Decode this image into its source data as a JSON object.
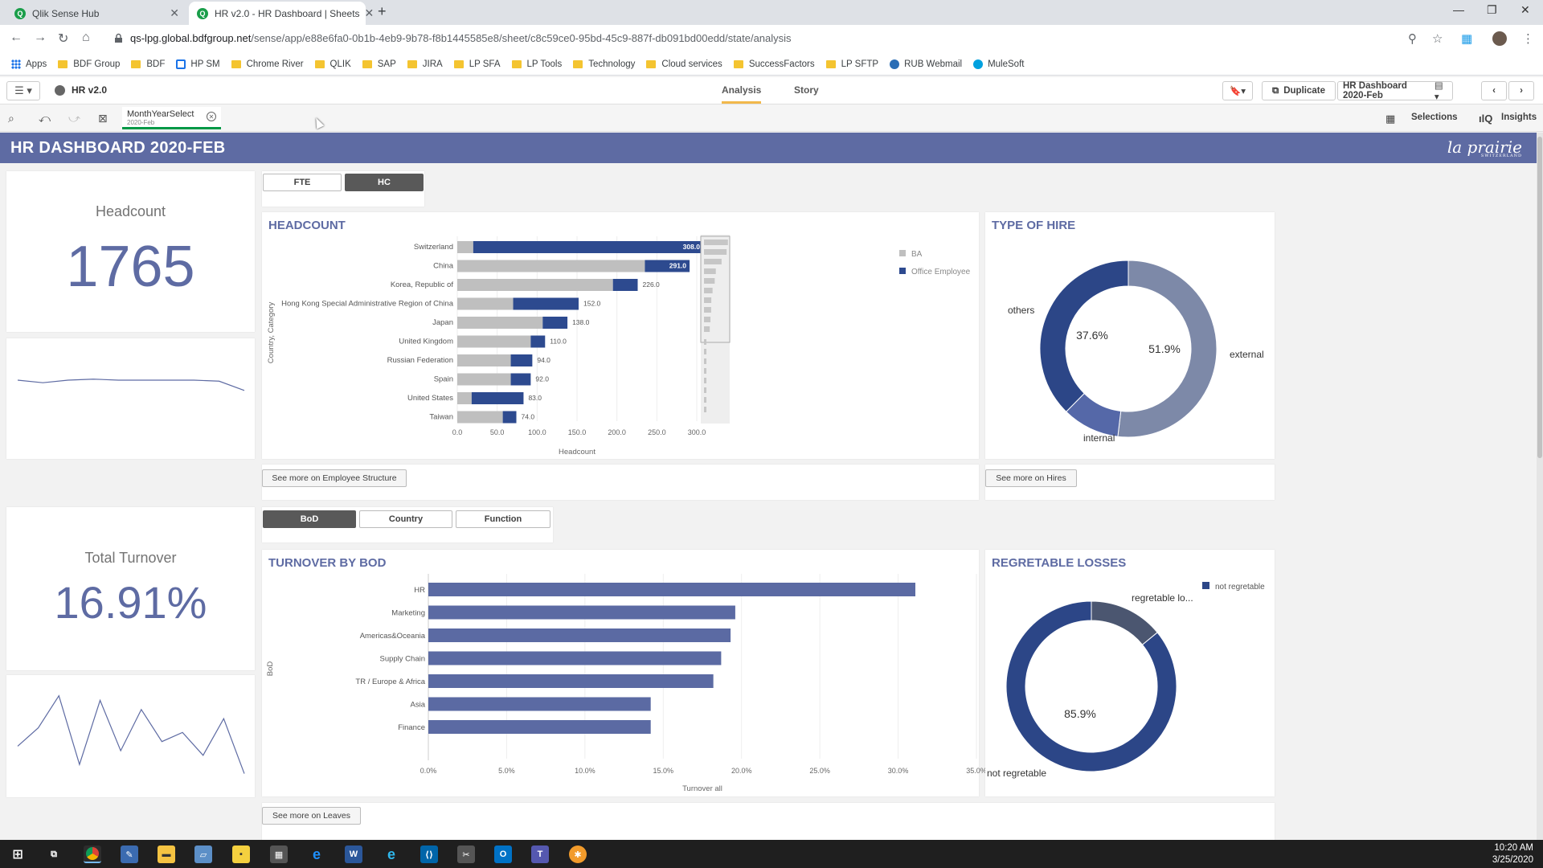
{
  "browser": {
    "tabs": [
      {
        "title": "Qlik Sense Hub"
      },
      {
        "title": "HR v2.0 - HR Dashboard | Sheets"
      }
    ],
    "url_host": "qs-lpg.global.bdfgroup.net",
    "url_path": "/sense/app/e88e6fa0-0b1b-4eb9-9b78-f8b1445585e8/sheet/c8c59ce0-95bd-45c9-887f-db091bd00edd/state/analysis",
    "bookmarks": [
      "Apps",
      "BDF Group",
      "BDF",
      "HP SM",
      "Chrome River",
      "QLIK",
      "SAP",
      "JIRA",
      "LP SFA",
      "LP Tools",
      "Technology",
      "Cloud services",
      "SuccessFactors",
      "LP SFTP",
      "RUB Webmail",
      "MuleSoft"
    ]
  },
  "qlik": {
    "app_name": "HR v2.0",
    "tabs": {
      "analysis": "Analysis",
      "story": "Story"
    },
    "duplicate_label": "Duplicate",
    "sheet_name": "HR Dashboard 2020-Feb",
    "selection": {
      "label": "MonthYearSelect",
      "value": "2020-Feb"
    },
    "selections_label": "Selections",
    "insights_label": "Insights"
  },
  "dashboard": {
    "title": "HR DASHBOARD 2020-FEB",
    "logo_text": "la prairie",
    "logo_sub": "SWITZERLAND",
    "headcount_kpi": {
      "label": "Headcount",
      "value": "1765"
    },
    "turnover_kpi": {
      "label": "Total Turnover",
      "value": "16.91%"
    },
    "toggle_top": {
      "fte": "FTE",
      "hc": "HC"
    },
    "toggle_bottom": {
      "bod": "BoD",
      "country": "Country",
      "function": "Function"
    },
    "see_more_structure": "See more on Employee Structure",
    "see_more_hires": "See more on Hires",
    "see_more_leaves": "See more on Leaves"
  },
  "colors": {
    "accent": "#5e6ba3",
    "dark_blue": "#2d4a8f",
    "grey_bar": "#bfbfbf",
    "turnover_bar": "#5b6aa3",
    "donut_external": "#7d89a8",
    "donut_others": "#2c4687",
    "donut_internal": "#5568a8",
    "loss_dark": "#2c4687",
    "loss_grey": "#4b5670"
  },
  "chart_data": [
    {
      "type": "bar",
      "title": "HEADCOUNT",
      "orientation": "horizontal",
      "stacked": true,
      "xlabel": "Headcount",
      "ylabel": "Country, Category",
      "xlim": [
        0,
        300
      ],
      "xticks": [
        "0.0",
        "50.0",
        "100.0",
        "150.0",
        "200.0",
        "250.0",
        "300.0"
      ],
      "categories": [
        "Switzerland",
        "China",
        "Korea, Republic of",
        "Hong Kong Special Administrative Region of China",
        "Japan",
        "United Kingdom",
        "Russian Federation",
        "Spain",
        "United States",
        "Taiwan"
      ],
      "series": [
        {
          "name": "BA",
          "values": [
            20,
            235,
            195,
            70,
            107,
            92,
            67,
            67,
            18,
            57
          ]
        },
        {
          "name": "Office Employee",
          "values": [
            288,
            56,
            31,
            82,
            31,
            18,
            27,
            25,
            65,
            17
          ]
        }
      ],
      "totals": [
        "308.0",
        "291.0",
        "226.0",
        "152.0",
        "138.0",
        "110.0",
        "94.0",
        "92.0",
        "83.0",
        "74.0"
      ],
      "legend": "right"
    },
    {
      "type": "pie",
      "title": "TYPE OF HIRE",
      "donut": true,
      "slices": [
        {
          "label": "external",
          "value": 51.9,
          "text": "51.9%"
        },
        {
          "label": "internal",
          "value": 10.5
        },
        {
          "label": "others",
          "value": 37.6,
          "text": "37.6%"
        }
      ]
    },
    {
      "type": "bar",
      "title": "TURNOVER BY BOD",
      "orientation": "horizontal",
      "xlabel": "Turnover all",
      "ylabel": "BoD",
      "xlim": [
        0,
        35
      ],
      "xticks": [
        "0.0%",
        "5.0%",
        "10.0%",
        "15.0%",
        "20.0%",
        "25.0%",
        "30.0%",
        "35.0%"
      ],
      "categories": [
        "HR",
        "Marketing",
        "Americas&Oceania",
        "Supply Chain",
        "TR / Europe & Africa",
        "Asia",
        "Finance"
      ],
      "values": [
        31.1,
        19.6,
        19.3,
        18.7,
        18.2,
        14.2,
        14.2
      ]
    },
    {
      "type": "pie",
      "title": "REGRETABLE LOSSES",
      "donut": true,
      "legend": "top-right",
      "legend_entries": [
        "not regretable"
      ],
      "slices": [
        {
          "label": "not regretable",
          "value": 85.9,
          "text": "85.9%"
        },
        {
          "label": "regretable lo...",
          "value": 14.1
        }
      ]
    },
    {
      "type": "line",
      "title": "",
      "values": [
        0.5,
        0.45,
        0.5,
        0.52,
        0.5,
        0.5,
        0.5,
        0.5,
        0.48,
        0.3
      ]
    },
    {
      "type": "line",
      "title": "",
      "values": [
        0.4,
        0.6,
        0.95,
        0.2,
        0.9,
        0.35,
        0.8,
        0.45,
        0.55,
        0.3,
        0.7,
        0.1
      ]
    }
  ],
  "taskbar": {
    "time": "10:20 AM",
    "date": "3/25/2020"
  }
}
